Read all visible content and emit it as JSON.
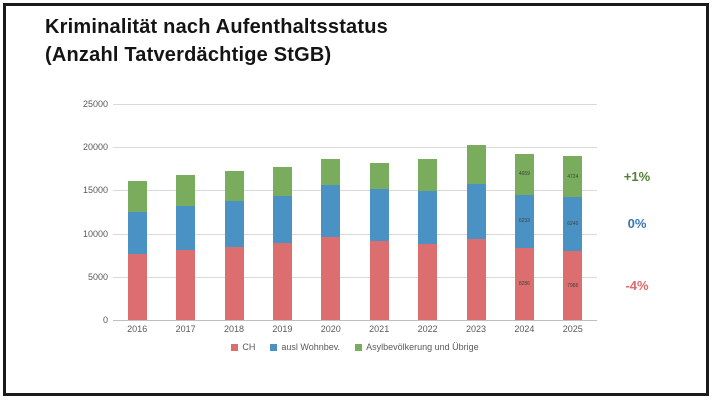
{
  "title": {
    "line1": "Kriminalität nach Aufenthaltsstatus",
    "line2": "(Anzahl Tatverdächtige StGB)"
  },
  "chart_data": {
    "type": "bar",
    "stacked": true,
    "title": "Kriminalität nach Aufenthaltsstatus (Anzahl Tatverdächtige StGB)",
    "categories": [
      "2016",
      "2017",
      "2018",
      "2019",
      "2020",
      "2021",
      "2022",
      "2023",
      "2024",
      "2025"
    ],
    "series": [
      {
        "name": "CH",
        "color": "#DC6E6F",
        "values": [
          7600,
          8100,
          8500,
          8950,
          9550,
          9200,
          8850,
          9350,
          8286,
          7986
        ]
      },
      {
        "name": "ausl Wohnbev.",
        "color": "#4A92C3",
        "values": [
          4950,
          5100,
          5300,
          5400,
          6050,
          5950,
          6100,
          6400,
          6233,
          6240
        ]
      },
      {
        "name": "Asylbevölkerung und Übrige",
        "color": "#7AAC5E",
        "values": [
          3550,
          3600,
          3500,
          3350,
          3050,
          3050,
          3700,
          4500,
          4659,
          4724
        ]
      }
    ],
    "value_label_categories": [
      "2024",
      "2025"
    ],
    "xlabel": "",
    "ylabel": "",
    "ylim": [
      0,
      25000
    ],
    "ytick_step": 5000,
    "grid": true,
    "legend_position": "bottom",
    "axis_text_color": "#595959"
  },
  "annotations": [
    {
      "label": "+1%",
      "series_name": "Asylbevölkerung und Übrige",
      "color": "#538135"
    },
    {
      "label": "0%",
      "series_name": "ausl Wohnbev.",
      "color": "#3B76B3"
    },
    {
      "label": "-4%",
      "series_name": "CH",
      "color": "#E0696C"
    }
  ]
}
